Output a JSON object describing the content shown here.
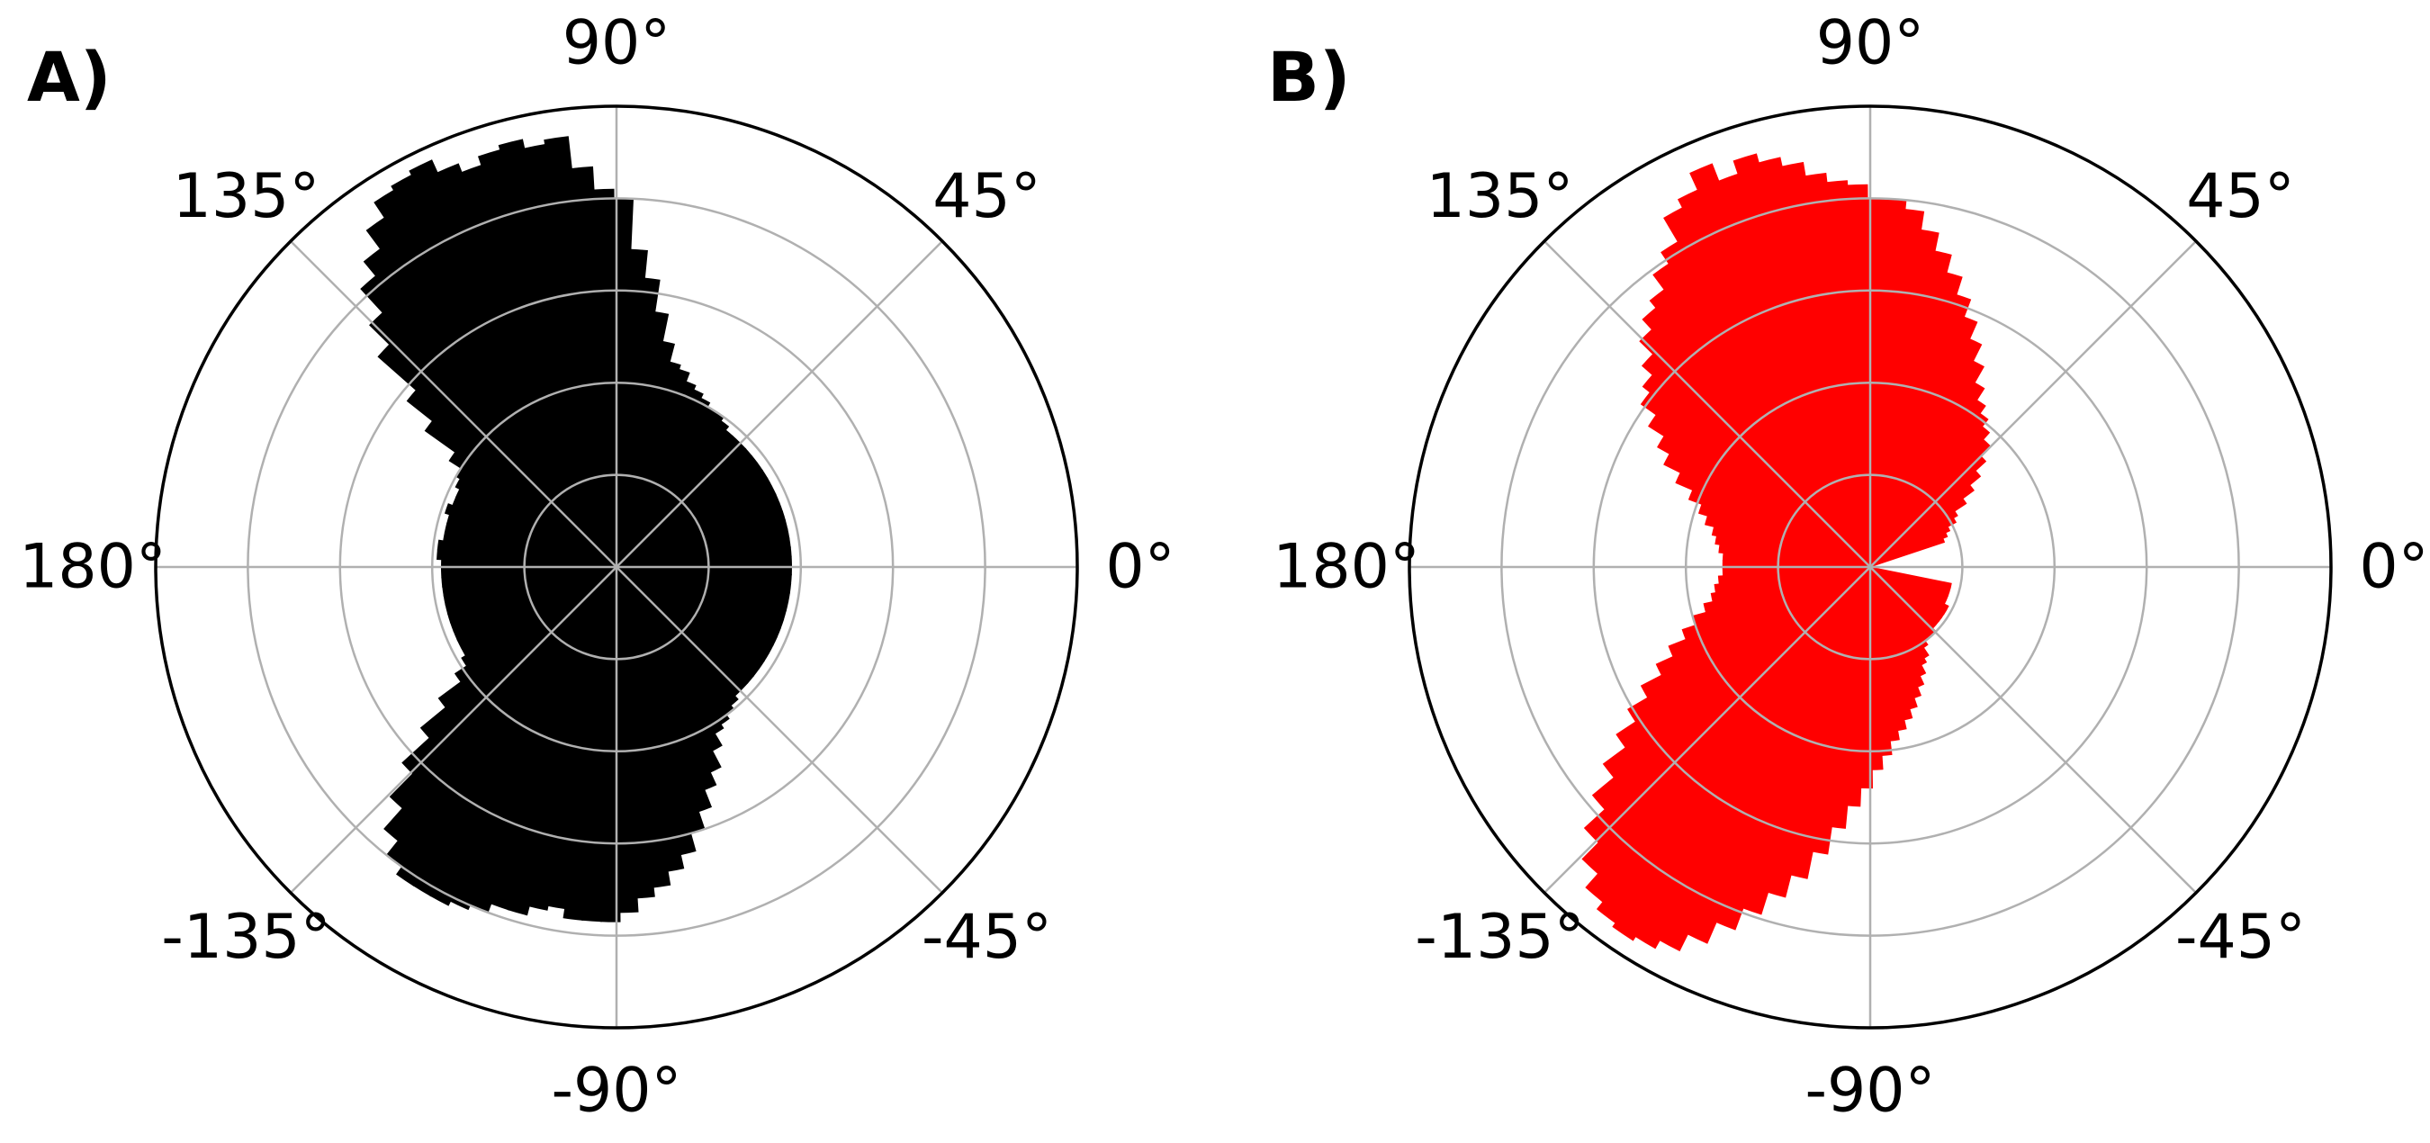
{
  "chart_data": [
    {
      "type": "polar-bar",
      "panel_label": "A)",
      "bar_color": "#000000",
      "theta_ticks": [
        "0°",
        "45°",
        "90°",
        "135°",
        "180°",
        "-135°",
        "-90°",
        "-45°"
      ],
      "theta_tick_degrees": [
        0,
        45,
        90,
        135,
        180,
        -135,
        -90,
        -45
      ],
      "r_max": 10,
      "r_grid": [
        2,
        4,
        6,
        8,
        10
      ],
      "r_tick_labels_visible": false,
      "theta_deg": [
        89,
        92,
        95,
        98,
        101,
        104,
        107,
        110,
        113,
        116,
        119,
        122,
        125,
        128,
        131,
        134,
        137,
        140,
        143,
        146,
        149,
        152,
        155,
        158,
        161,
        164,
        167,
        170,
        173,
        176,
        179,
        182,
        185,
        188,
        191,
        194,
        197,
        200,
        203,
        206,
        209,
        212,
        215,
        218,
        221,
        224,
        227,
        230,
        233,
        236,
        239,
        242,
        245,
        248,
        251,
        254,
        257,
        260,
        263,
        266,
        269,
        272,
        275,
        278,
        281,
        284,
        287,
        290,
        293,
        296,
        299,
        302,
        305,
        308,
        311,
        314,
        317,
        320,
        323,
        326,
        329,
        332,
        335,
        338,
        341,
        344,
        347,
        350,
        353,
        356,
        359,
        2,
        5,
        8,
        11,
        14,
        17,
        20,
        23,
        26,
        29,
        32,
        35,
        38,
        41,
        44,
        47,
        50,
        53,
        56,
        59,
        62,
        65,
        68,
        71,
        74,
        77,
        80,
        83,
        86
      ],
      "radius": [
        8.0,
        8.2,
        8.7,
        9.4,
        9.3,
        9.5,
        9.4,
        9.2,
        9.4,
        9.7,
        9.6,
        9.5,
        9.1,
        8.6,
        8.2,
        7.5,
        6.9,
        5.8,
        5.1,
        4.3,
        4.0,
        3.9,
        3.8,
        3.8,
        3.9,
        3.8,
        3.8,
        3.8,
        3.9,
        3.9,
        3.8,
        3.8,
        3.8,
        3.8,
        3.8,
        3.8,
        3.8,
        3.8,
        3.8,
        3.8,
        3.8,
        3.9,
        4.2,
        4.8,
        5.5,
        6.3,
        7.0,
        7.6,
        8.0,
        8.2,
        8.2,
        8.2,
        8.1,
        8.0,
        7.8,
        7.8,
        7.6,
        7.5,
        7.7,
        7.7,
        7.7,
        7.5,
        7.2,
        7.0,
        6.7,
        6.4,
        6.0,
        5.6,
        5.2,
        4.9,
        4.5,
        4.2,
        4.1,
        4.0,
        3.9,
        3.8,
        3.8,
        3.8,
        3.8,
        3.8,
        3.8,
        3.8,
        3.8,
        3.8,
        3.8,
        3.8,
        3.8,
        3.8,
        3.8,
        3.8,
        3.8,
        3.8,
        3.8,
        3.8,
        3.8,
        3.8,
        3.8,
        3.8,
        3.8,
        3.8,
        3.8,
        3.8,
        3.8,
        3.8,
        3.8,
        3.8,
        3.8,
        3.8,
        3.9,
        4.0,
        4.0,
        4.1,
        4.2,
        4.3,
        4.5,
        4.6,
        5.0,
        5.6,
        6.3,
        6.9
      ]
    },
    {
      "type": "polar-bar",
      "panel_label": "B)",
      "bar_color": "#ff0000",
      "theta_ticks": [
        "0°",
        "45°",
        "90°",
        "135°",
        "180°",
        "-135°",
        "-90°",
        "-45°"
      ],
      "theta_tick_degrees": [
        0,
        45,
        90,
        135,
        180,
        -135,
        -90,
        -45
      ],
      "r_max": 10,
      "r_grid": [
        2,
        4,
        6,
        8,
        10
      ],
      "r_tick_labels_visible": false,
      "theta_deg": [
        20,
        23,
        26,
        29,
        32,
        35,
        38,
        41,
        44,
        47,
        50,
        53,
        56,
        59,
        62,
        65,
        68,
        71,
        74,
        77,
        80,
        83,
        86,
        89,
        92,
        95,
        98,
        101,
        104,
        107,
        110,
        113,
        116,
        119,
        122,
        125,
        128,
        131,
        134,
        137,
        140,
        143,
        146,
        149,
        152,
        155,
        158,
        161,
        164,
        167,
        170,
        173,
        176,
        179,
        182,
        185,
        188,
        191,
        194,
        197,
        200,
        203,
        206,
        209,
        212,
        215,
        218,
        221,
        224,
        227,
        230,
        233,
        236,
        239,
        242,
        245,
        248,
        251,
        254,
        257,
        260,
        263,
        266,
        269,
        272,
        275,
        278,
        281,
        284,
        287,
        290,
        293,
        296,
        299,
        302,
        305,
        308,
        311,
        314,
        317,
        320,
        323,
        326,
        329,
        332,
        335,
        338,
        341,
        344,
        347
      ],
      "radius": [
        1.7,
        1.8,
        1.9,
        2.1,
        2.2,
        2.5,
        2.8,
        3.1,
        3.4,
        3.7,
        3.9,
        4.1,
        4.3,
        4.6,
        5.0,
        5.4,
        5.8,
        6.2,
        6.6,
        7.0,
        7.4,
        7.8,
        8.0,
        8.0,
        8.3,
        8.4,
        8.6,
        8.9,
        9.1,
        9.3,
        9.0,
        9.4,
        9.0,
        8.8,
        8.2,
        7.9,
        7.5,
        7.3,
        7.0,
        6.6,
        6.3,
        6.1,
        5.7,
        5.3,
        5.0,
        4.6,
        4.2,
        3.9,
        3.7,
        3.5,
        3.4,
        3.3,
        3.2,
        3.2,
        3.2,
        3.3,
        3.4,
        3.5,
        3.7,
        4.0,
        4.3,
        4.7,
        5.1,
        5.6,
        6.1,
        6.6,
        7.2,
        7.8,
        8.4,
        8.9,
        9.3,
        9.5,
        9.6,
        9.5,
        9.3,
        8.9,
        8.4,
        7.9,
        7.4,
        6.9,
        6.3,
        5.7,
        5.2,
        4.8,
        4.4,
        4.1,
        3.8,
        3.6,
        3.4,
        3.2,
        3.0,
        2.8,
        2.6,
        2.4,
        2.3,
        2.1,
        2.0,
        2.0,
        2.0,
        1.9,
        1.9,
        1.9,
        1.9,
        1.9,
        1.9,
        1.8,
        1.8,
        1.8,
        1.8,
        1.8
      ]
    }
  ]
}
